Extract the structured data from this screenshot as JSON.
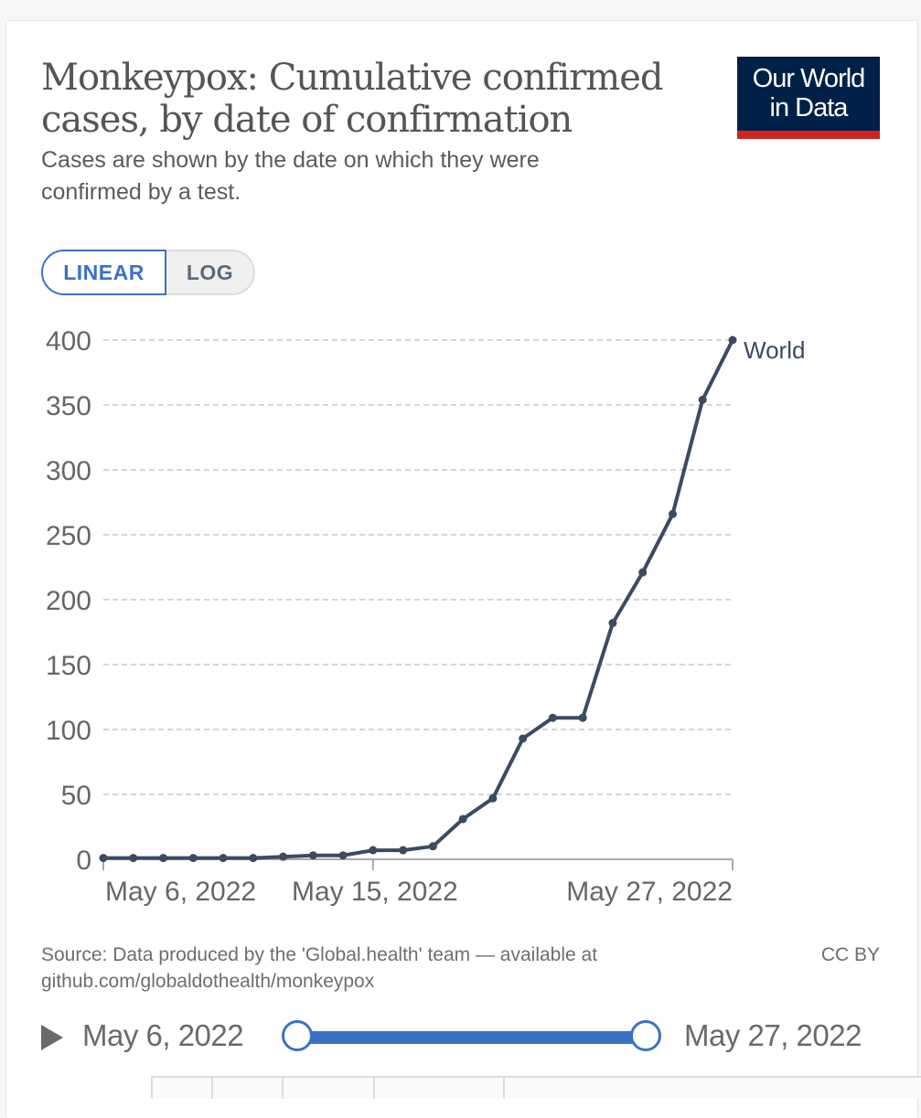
{
  "header": {
    "title": "Monkeypox: Cumulative confirmed cases, by date of confirmation",
    "subtitle": "Cases are shown by the date on which they were confirmed by a test.",
    "logo_line1": "Our World",
    "logo_line2": "in Data",
    "logo_color": "#002147",
    "logo_accent": "#ce261e"
  },
  "scale_toggle": {
    "linear_label": "LINEAR",
    "log_label": "LOG",
    "selected": "LINEAR",
    "accent": "#3b72c6"
  },
  "footer": {
    "source": "Source: Data produced by the 'Global.health' team — available at github.com/globaldothealth/monkeypox",
    "license": "CC BY"
  },
  "timeline": {
    "play_icon": "play-icon",
    "start_label": "May 6, 2022",
    "end_label": "May 27, 2022"
  },
  "chart_data": {
    "type": "line",
    "title": "Monkeypox: Cumulative confirmed cases, by date of confirmation",
    "xlabel": "",
    "ylabel": "",
    "ylim": [
      0,
      400
    ],
    "yticks": [
      0,
      50,
      100,
      150,
      200,
      250,
      300,
      350,
      400
    ],
    "ytick_labels": [
      "0",
      "50",
      "100",
      "150",
      "200",
      "250",
      "300",
      "350",
      "400"
    ],
    "xtick_labels": [
      "May 6, 2022",
      "May 15, 2022",
      "May 27, 2022"
    ],
    "xtick_index": [
      0,
      9,
      21
    ],
    "grid": "horizontal-dashed",
    "x": [
      "2022-05-06",
      "2022-05-07",
      "2022-05-08",
      "2022-05-09",
      "2022-05-10",
      "2022-05-11",
      "2022-05-12",
      "2022-05-13",
      "2022-05-14",
      "2022-05-15",
      "2022-05-16",
      "2022-05-17",
      "2022-05-18",
      "2022-05-19",
      "2022-05-20",
      "2022-05-21",
      "2022-05-22",
      "2022-05-23",
      "2022-05-24",
      "2022-05-25",
      "2022-05-26",
      "2022-05-27"
    ],
    "series": [
      {
        "name": "World",
        "color": "#3c4a62",
        "values": [
          1,
          1,
          1,
          1,
          1,
          1,
          2,
          3,
          3,
          7,
          7,
          10,
          31,
          47,
          93,
          109,
          109,
          182,
          221,
          266,
          354,
          400
        ]
      }
    ],
    "legend": "end-of-line label"
  }
}
